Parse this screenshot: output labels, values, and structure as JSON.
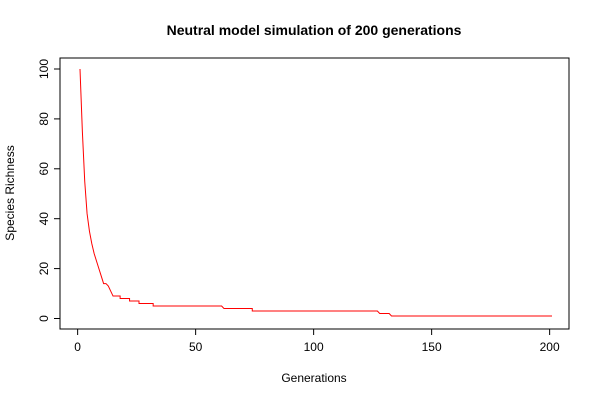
{
  "chart_data": {
    "type": "line",
    "title": "Neutral model simulation of 200 generations",
    "xlabel": "Generations",
    "ylabel": "Species Richness",
    "xlim": [
      1,
      201
    ],
    "ylim": [
      1,
      100
    ],
    "x_ticks": [
      0,
      50,
      100,
      150,
      200
    ],
    "y_ticks": [
      0,
      20,
      40,
      60,
      80,
      100
    ],
    "grid": false,
    "legend": "none",
    "series": [
      {
        "color": "#ff0000",
        "x": [
          1,
          2,
          3,
          4,
          5,
          6,
          7,
          8,
          9,
          10,
          11,
          12,
          13,
          14,
          15,
          16,
          18,
          20,
          22,
          24,
          26,
          28,
          30,
          32,
          40,
          50,
          61,
          62,
          70,
          74,
          80,
          100,
          120,
          127,
          128,
          130,
          131,
          132,
          133,
          140,
          150,
          175,
          201
        ],
        "y": [
          100,
          75,
          55,
          42,
          35,
          30,
          26,
          23,
          20,
          17,
          14,
          14,
          13,
          11,
          9,
          9,
          8,
          8,
          7,
          7,
          6,
          6,
          6,
          5,
          5,
          5,
          5,
          4,
          4,
          3,
          3,
          3,
          3,
          3,
          2,
          2,
          2,
          2,
          1,
          1,
          1,
          1,
          1
        ]
      }
    ]
  }
}
